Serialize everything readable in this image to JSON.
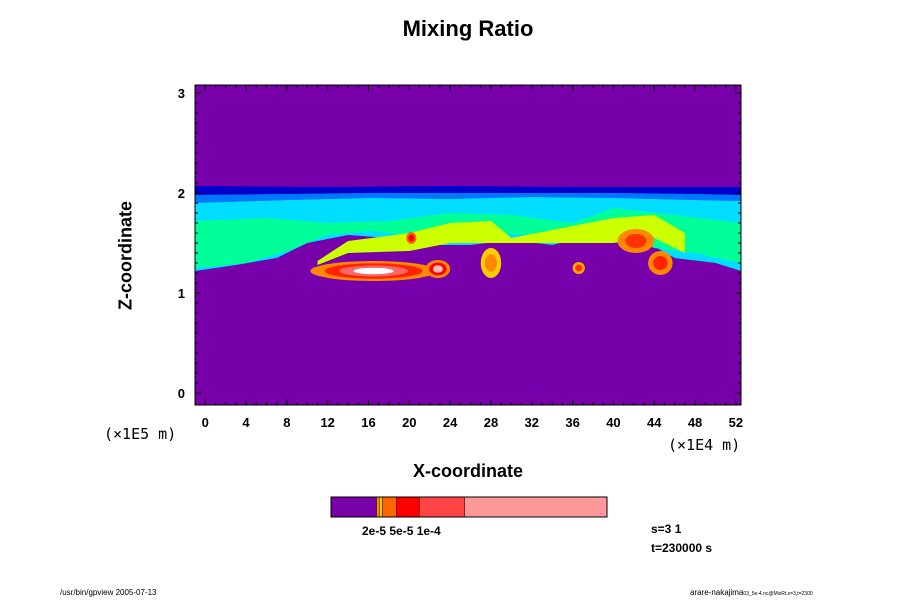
{
  "chart_data": {
    "type": "heatmap",
    "title": "Mixing Ratio",
    "xlabel": "X-coordinate",
    "ylabel": "Z-coordinate",
    "x_scale_label": "(×1E4 m)",
    "y_scale_label": "(×1E5 m)",
    "xlim": [
      -1,
      52.5
    ],
    "ylim": [
      -0.12,
      3.08
    ],
    "x_ticks": [
      0,
      4,
      8,
      12,
      16,
      20,
      24,
      28,
      32,
      36,
      40,
      44,
      48,
      52
    ],
    "y_ticks": [
      0,
      1,
      2,
      3
    ],
    "background_color": "#7700aa",
    "colorbar": {
      "label": "2e-5 5e-5 1e-4",
      "segments": [
        {
          "color": "#7700aa",
          "weight": 16
        },
        {
          "color": "#ff8800",
          "weight": 1
        },
        {
          "color": "#ffcc00",
          "weight": 1
        },
        {
          "color": "#ff6600",
          "weight": 5
        },
        {
          "color": "#ff0000",
          "weight": 8
        },
        {
          "color": "#ff4444",
          "weight": 16
        },
        {
          "color": "#ff9999",
          "weight": 50
        }
      ]
    },
    "levels": [
      {
        "color": "#0000cc",
        "band": [
          [
            -1,
            1.98
          ],
          [
            8,
            1.99
          ],
          [
            16,
            2.0
          ],
          [
            24,
            2.0
          ],
          [
            32,
            2.0
          ],
          [
            40,
            2.0
          ],
          [
            48,
            1.99
          ],
          [
            52.5,
            1.98
          ]
        ],
        "top": [
          [
            -1,
            2.07
          ],
          [
            12,
            2.06
          ],
          [
            24,
            2.07
          ],
          [
            36,
            2.06
          ],
          [
            52.5,
            2.06
          ]
        ]
      },
      {
        "color": "#0077ff",
        "band": [
          [
            -1,
            1.9
          ],
          [
            8,
            1.93
          ],
          [
            16,
            1.95
          ],
          [
            24,
            1.94
          ],
          [
            32,
            1.96
          ],
          [
            40,
            1.95
          ],
          [
            48,
            1.93
          ],
          [
            52.5,
            1.92
          ]
        ],
        "top": [
          [
            -1,
            1.98
          ],
          [
            8,
            1.99
          ],
          [
            16,
            2.0
          ],
          [
            24,
            2.0
          ],
          [
            32,
            2.0
          ],
          [
            40,
            2.0
          ],
          [
            48,
            1.99
          ],
          [
            52.5,
            1.98
          ]
        ]
      },
      {
        "color": "#00ddff",
        "band": [
          [
            -1,
            1.22
          ],
          [
            3,
            1.28
          ],
          [
            7,
            1.35
          ],
          [
            10,
            1.5
          ],
          [
            14,
            1.58
          ],
          [
            18,
            1.55
          ],
          [
            22,
            1.48
          ],
          [
            26,
            1.48
          ],
          [
            30,
            1.53
          ],
          [
            34,
            1.48
          ],
          [
            38,
            1.58
          ],
          [
            42,
            1.58
          ],
          [
            46,
            1.35
          ],
          [
            50,
            1.3
          ],
          [
            52.5,
            1.22
          ]
        ],
        "top": [
          [
            -1,
            1.9
          ],
          [
            8,
            1.93
          ],
          [
            16,
            1.95
          ],
          [
            24,
            1.94
          ],
          [
            32,
            1.96
          ],
          [
            40,
            1.95
          ],
          [
            48,
            1.93
          ],
          [
            52.5,
            1.92
          ]
        ]
      },
      {
        "color": "#00ff99",
        "band": [
          [
            -1,
            1.25
          ],
          [
            4,
            1.3
          ],
          [
            8,
            1.42
          ],
          [
            12,
            1.58
          ],
          [
            16,
            1.62
          ],
          [
            20,
            1.58
          ],
          [
            24,
            1.55
          ],
          [
            28,
            1.6
          ],
          [
            32,
            1.58
          ],
          [
            36,
            1.62
          ],
          [
            40,
            1.62
          ],
          [
            44,
            1.45
          ],
          [
            48,
            1.4
          ],
          [
            52.5,
            1.3
          ]
        ],
        "top": [
          [
            -1,
            1.72
          ],
          [
            6,
            1.75
          ],
          [
            12,
            1.7
          ],
          [
            18,
            1.72
          ],
          [
            24,
            1.8
          ],
          [
            30,
            1.78
          ],
          [
            36,
            1.7
          ],
          [
            40,
            1.85
          ],
          [
            46,
            1.78
          ],
          [
            52.5,
            1.7
          ]
        ]
      },
      {
        "color": "#ccff00",
        "band": [
          [
            11,
            1.28
          ],
          [
            14,
            1.4
          ],
          [
            20,
            1.42
          ],
          [
            24,
            1.5
          ],
          [
            28,
            1.5
          ],
          [
            30,
            1.5
          ],
          [
            40,
            1.5
          ],
          [
            44,
            1.55
          ],
          [
            47,
            1.4
          ]
        ],
        "top": [
          [
            11,
            1.32
          ],
          [
            14,
            1.52
          ],
          [
            20,
            1.6
          ],
          [
            24,
            1.7
          ],
          [
            28,
            1.72
          ],
          [
            30,
            1.55
          ],
          [
            40,
            1.75
          ],
          [
            44,
            1.78
          ],
          [
            47,
            1.6
          ]
        ]
      }
    ],
    "blobs": [
      {
        "cx": 16.5,
        "cy": 1.22,
        "rx": 6.2,
        "ry": 0.1,
        "colors": [
          "#ff8800",
          "#ff2200",
          "#ff6666",
          "#ffffff"
        ]
      },
      {
        "cx": 22.8,
        "cy": 1.24,
        "rx": 1.2,
        "ry": 0.09,
        "colors": [
          "#ff8800",
          "#ff0000",
          "#ffbbbb"
        ]
      },
      {
        "cx": 36.6,
        "cy": 1.25,
        "rx": 0.6,
        "ry": 0.06,
        "colors": [
          "#ffaa00",
          "#ff3300"
        ]
      },
      {
        "cx": 42.2,
        "cy": 1.52,
        "rx": 1.8,
        "ry": 0.12,
        "colors": [
          "#ff8800",
          "#ff3300"
        ]
      },
      {
        "cx": 44.6,
        "cy": 1.3,
        "rx": 1.2,
        "ry": 0.12,
        "colors": [
          "#ff8800",
          "#ff2200"
        ]
      },
      {
        "cx": 28.0,
        "cy": 1.3,
        "rx": 1.0,
        "ry": 0.15,
        "colors": [
          "#ffcc00",
          "#ff8800"
        ]
      },
      {
        "cx": 20.2,
        "cy": 1.55,
        "rx": 0.5,
        "ry": 0.06,
        "colors": [
          "#ff6600",
          "#ff0000"
        ]
      }
    ]
  },
  "status": {
    "s_label": "s=3 1",
    "t_label": "t=230000 s"
  },
  "footer": {
    "left_text": "/usr/bin/gpview 2005-07-13",
    "right_text_main": "arare-nakajima",
    "right_text_sub": "03_5e-4.nc@MixRt,s=3,t=2300"
  }
}
